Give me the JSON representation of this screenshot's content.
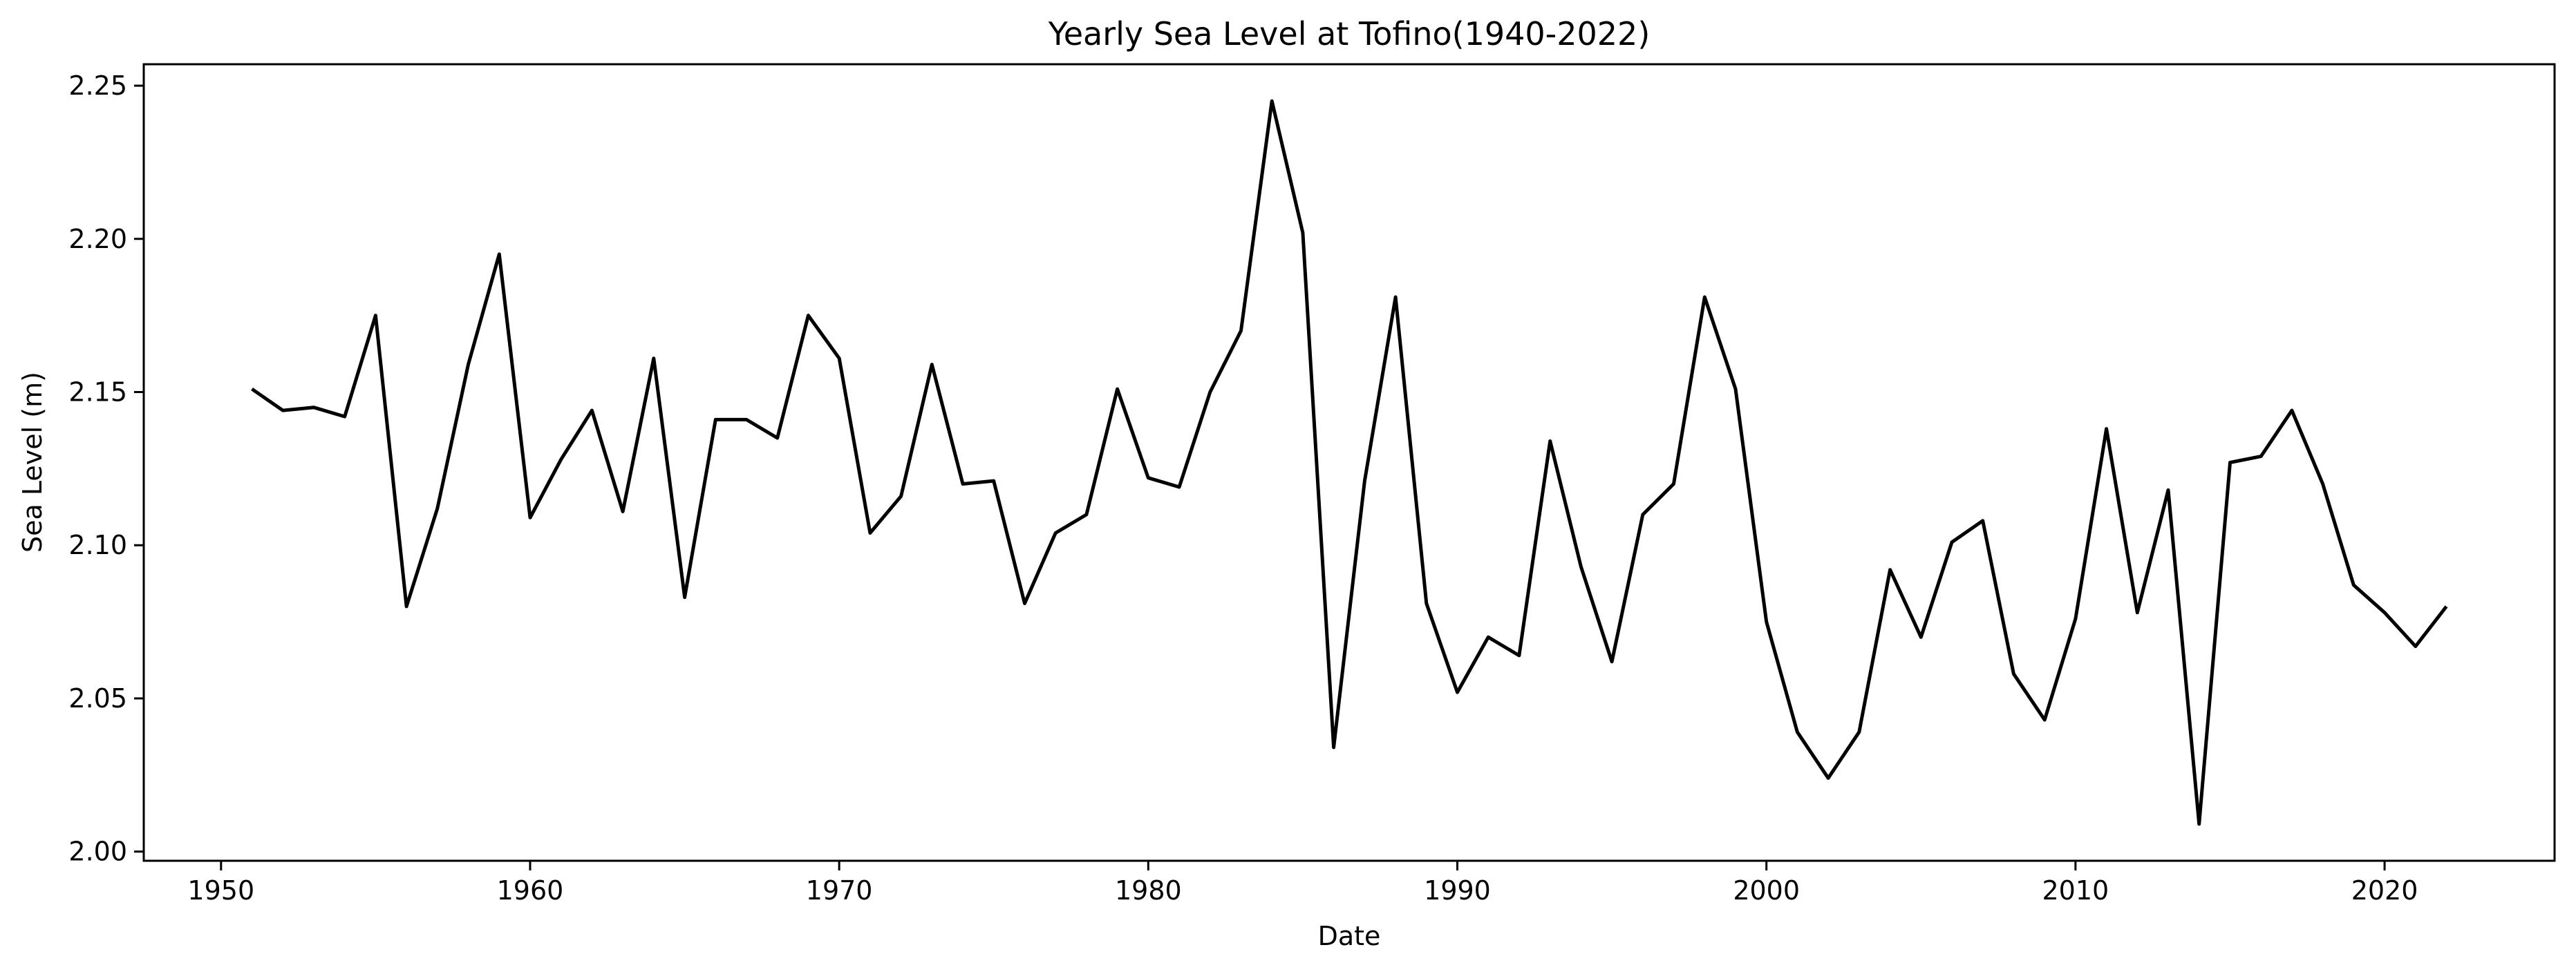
{
  "chart_data": {
    "type": "line",
    "title": "Yearly Sea Level at Tofino(1940-2022)",
    "xlabel": "Date",
    "ylabel": "Sea Level (m)",
    "xlim": [
      1947.5,
      2025.5
    ],
    "ylim": [
      1.997,
      2.257
    ],
    "x_ticks": [
      1950,
      1960,
      1970,
      1980,
      1990,
      2000,
      2010,
      2020
    ],
    "y_ticks": [
      2.0,
      2.05,
      2.1,
      2.15,
      2.2,
      2.25
    ],
    "y_tick_labels": [
      "2.00",
      "2.05",
      "2.10",
      "2.15",
      "2.20",
      "2.25"
    ],
    "grid": false,
    "line_color": "#000000",
    "series": [
      {
        "x": [
          1951,
          1952,
          1953,
          1954,
          1955,
          1956,
          1957,
          1958,
          1959,
          1960,
          1961,
          1962,
          1963,
          1964,
          1965,
          1966,
          1967,
          1968,
          1969,
          1970,
          1971,
          1972,
          1973,
          1974,
          1975,
          1976,
          1977,
          1978,
          1979,
          1980,
          1981,
          1982,
          1983,
          1984,
          1985,
          1986,
          1987,
          1988,
          1989,
          1990,
          1991,
          1992,
          1993,
          1994,
          1995,
          1996,
          1997,
          1998,
          1999,
          2000,
          2001,
          2002,
          2003,
          2004,
          2005,
          2006,
          2007,
          2008,
          2009,
          2010,
          2011,
          2012,
          2013,
          2014,
          2015,
          2016,
          2017,
          2018,
          2019,
          2020,
          2021,
          2022
        ],
        "values": [
          2.151,
          2.144,
          2.145,
          2.142,
          2.175,
          2.08,
          2.112,
          2.159,
          2.195,
          2.109,
          2.128,
          2.144,
          2.111,
          2.161,
          2.083,
          2.141,
          2.141,
          2.135,
          2.175,
          2.161,
          2.104,
          2.116,
          2.159,
          2.12,
          2.121,
          2.081,
          2.104,
          2.11,
          2.151,
          2.122,
          2.119,
          2.15,
          2.17,
          2.245,
          2.202,
          2.034,
          2.121,
          2.181,
          2.081,
          2.052,
          2.07,
          2.064,
          2.134,
          2.093,
          2.062,
          2.11,
          2.12,
          2.181,
          2.151,
          2.075,
          2.039,
          2.024,
          2.039,
          2.092,
          2.07,
          2.101,
          2.108,
          2.058,
          2.043,
          2.076,
          2.138,
          2.078,
          2.118,
          2.009,
          2.127,
          2.129,
          2.144,
          2.12,
          2.087,
          2.078,
          2.067,
          2.08
        ]
      }
    ]
  }
}
